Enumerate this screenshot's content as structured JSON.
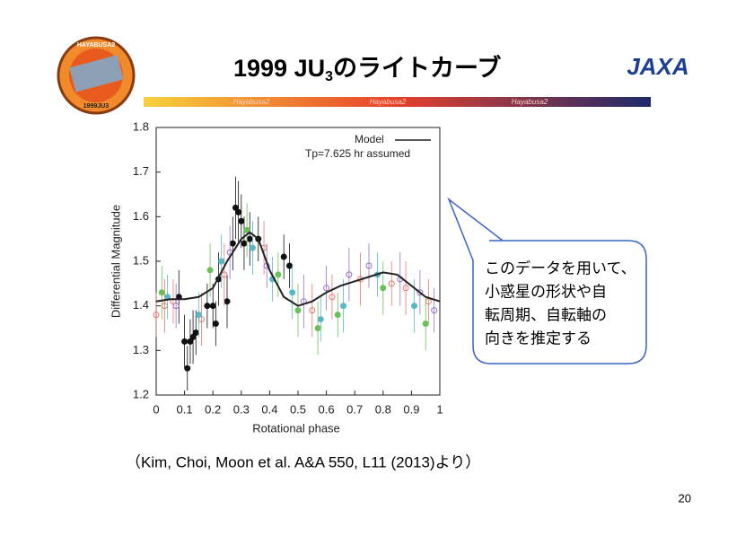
{
  "header": {
    "title_main": "1999 JU",
    "title_sub": "3",
    "title_rest": "のライトカーブ",
    "banner": [
      "Hayabusa2",
      "Hayabusa2",
      "Hayabusa2"
    ],
    "logo_text": "HAYABUSA2",
    "logo_target": "1999JU3",
    "agency": "JAXA"
  },
  "chart_data": {
    "type": "scatter",
    "xlabel": "Rotational phase",
    "ylabel": "Differential Magnitude",
    "annotation": "Tp=7.625 hr assumed",
    "xlim": [
      0,
      1
    ],
    "ylim": [
      1.2,
      1.8
    ],
    "xticks": [
      0,
      0.1,
      0.2,
      0.3,
      0.4,
      0.5,
      0.6,
      0.7,
      0.8,
      0.9,
      1
    ],
    "yticks": [
      1.2,
      1.3,
      1.4,
      1.5,
      1.6,
      1.7,
      1.8
    ],
    "line": {
      "name": "Model",
      "color": "#222222",
      "x": [
        0,
        0.05,
        0.1,
        0.15,
        0.2,
        0.25,
        0.3,
        0.33,
        0.36,
        0.4,
        0.45,
        0.5,
        0.55,
        0.6,
        0.65,
        0.7,
        0.75,
        0.8,
        0.85,
        0.9,
        0.95,
        1
      ],
      "values": [
        1.41,
        1.415,
        1.415,
        1.42,
        1.44,
        1.5,
        1.55,
        1.565,
        1.55,
        1.48,
        1.42,
        1.4,
        1.41,
        1.43,
        1.445,
        1.455,
        1.465,
        1.475,
        1.47,
        1.445,
        1.42,
        1.41
      ]
    },
    "series": [
      {
        "color": "#111111",
        "filled": true,
        "x": [
          0.08,
          0.1,
          0.11,
          0.12,
          0.13,
          0.14,
          0.18,
          0.2,
          0.21,
          0.22,
          0.25,
          0.27,
          0.28,
          0.29,
          0.3,
          0.31,
          0.33,
          0.36,
          0.45,
          0.47
        ],
        "values": [
          1.42,
          1.32,
          1.26,
          1.32,
          1.33,
          1.34,
          1.4,
          1.4,
          1.36,
          1.46,
          1.41,
          1.54,
          1.62,
          1.61,
          1.59,
          1.54,
          1.55,
          1.55,
          1.51,
          1.49
        ],
        "errors": [
          0.06,
          0.06,
          0.05,
          0.05,
          0.06,
          0.05,
          0.05,
          0.05,
          0.05,
          0.06,
          0.06,
          0.06,
          0.07,
          0.07,
          0.06,
          0.06,
          0.06,
          0.05,
          0.05,
          0.05
        ]
      },
      {
        "color": "#e8786e",
        "filled": false,
        "x": [
          0.0,
          0.03,
          0.06,
          0.16,
          0.24,
          0.38,
          0.55,
          0.62,
          0.72,
          0.83,
          0.88,
          0.96
        ],
        "values": [
          1.38,
          1.4,
          1.41,
          1.37,
          1.47,
          1.53,
          1.39,
          1.42,
          1.46,
          1.45,
          1.44,
          1.41
        ],
        "errors": [
          0.05,
          0.06,
          0.05,
          0.06,
          0.07,
          0.06,
          0.06,
          0.05,
          0.06,
          0.05,
          0.06,
          0.05
        ]
      },
      {
        "color": "#58b8c8",
        "filled": true,
        "x": [
          0.04,
          0.15,
          0.23,
          0.34,
          0.41,
          0.48,
          0.58,
          0.66,
          0.78,
          0.91
        ],
        "values": [
          1.42,
          1.38,
          1.5,
          1.53,
          1.46,
          1.43,
          1.37,
          1.4,
          1.47,
          1.4
        ],
        "errors": [
          0.05,
          0.05,
          0.06,
          0.06,
          0.05,
          0.06,
          0.05,
          0.06,
          0.05,
          0.06
        ]
      },
      {
        "color": "#9b6fc9",
        "filled": false,
        "x": [
          0.07,
          0.26,
          0.39,
          0.52,
          0.6,
          0.68,
          0.75,
          0.86,
          0.93,
          0.98
        ],
        "values": [
          1.4,
          1.52,
          1.49,
          1.41,
          1.44,
          1.47,
          1.49,
          1.46,
          1.43,
          1.39
        ],
        "errors": [
          0.05,
          0.06,
          0.05,
          0.06,
          0.05,
          0.06,
          0.05,
          0.06,
          0.05,
          0.05
        ]
      },
      {
        "color": "#6bbf59",
        "filled": true,
        "x": [
          0.02,
          0.19,
          0.32,
          0.43,
          0.5,
          0.57,
          0.64,
          0.8,
          0.95
        ],
        "values": [
          1.43,
          1.48,
          1.57,
          1.47,
          1.39,
          1.35,
          1.38,
          1.44,
          1.36
        ],
        "errors": [
          0.06,
          0.06,
          0.06,
          0.05,
          0.06,
          0.06,
          0.05,
          0.06,
          0.06
        ]
      }
    ]
  },
  "callout": [
    "このデータを用いて、",
    "小惑星の形状や自",
    "転周期、自転軸の",
    "向きを推定する"
  ],
  "citation": "（Kim, Choi, Moon et al. A&A 550, L11 (2013)より）",
  "page_number": "20"
}
